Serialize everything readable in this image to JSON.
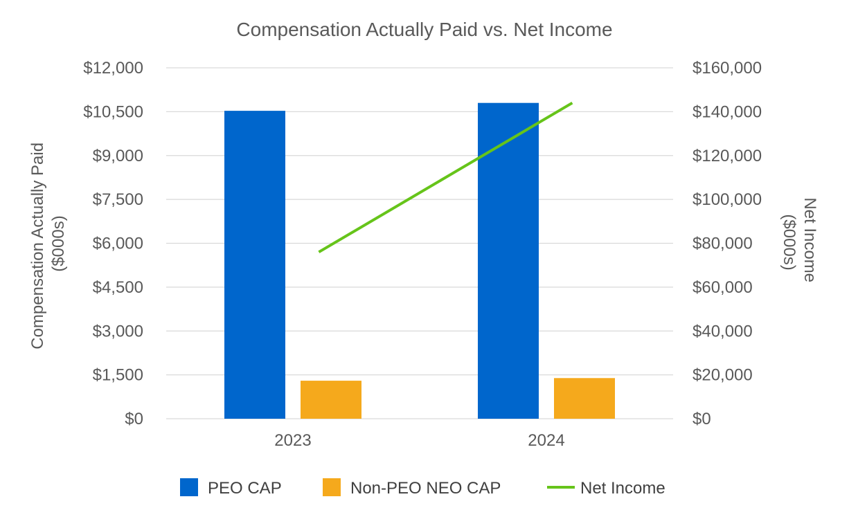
{
  "chart_data": {
    "type": "bar",
    "title": "Compensation Actually Paid vs. Net Income",
    "categories": [
      "2023",
      "2024"
    ],
    "y_left": {
      "label_lines": [
        "Compensation Actually Paid",
        "($000s)"
      ],
      "lim": [
        0,
        12000
      ],
      "ticks": [
        0,
        1500,
        3000,
        4500,
        6000,
        7500,
        9000,
        10500,
        12000
      ],
      "tick_labels": [
        "$0",
        "$1,500",
        "$3,000",
        "$4,500",
        "$6,000",
        "$7,500",
        "$9,000",
        "$10,500",
        "$12,000"
      ]
    },
    "y_right": {
      "label_lines": [
        "Net Income",
        "($000s)"
      ],
      "lim": [
        0,
        160000
      ],
      "ticks": [
        0,
        20000,
        40000,
        60000,
        80000,
        100000,
        120000,
        140000,
        160000
      ],
      "tick_labels": [
        "$0",
        "$20,000",
        "$40,000",
        "$60,000",
        "$80,000",
        "$100,000",
        "$120,000",
        "$140,000",
        "$160,000"
      ]
    },
    "series": [
      {
        "name": "PEO CAP",
        "type": "bar",
        "axis": "left",
        "color": "#0066cc",
        "values": [
          10530,
          10800
        ]
      },
      {
        "name": "Non-PEO NEO CAP",
        "type": "bar",
        "axis": "left",
        "color": "#f5a91c",
        "values": [
          1300,
          1390
        ]
      },
      {
        "name": "Net Income",
        "type": "line",
        "axis": "right",
        "color": "#66c41a",
        "values": [
          76000,
          144000
        ]
      }
    ],
    "grid": true,
    "legend_position": "bottom"
  }
}
